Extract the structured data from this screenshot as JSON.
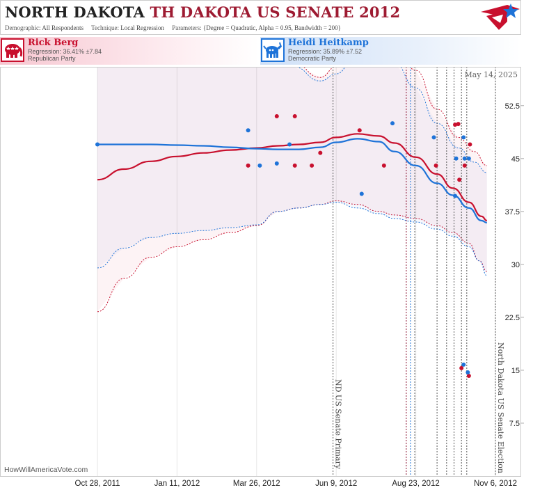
{
  "header": {
    "state": "NORTH DAKOTA",
    "race": "TH DAKOTA US SENATE 2012",
    "params": {
      "demographic_label": "Demographic:",
      "demographic": "All Respondents",
      "technique_label": "Technique:",
      "technique": "Local Regression",
      "parameters_label": "Parameters:",
      "parameters": "{Degree = Quadratic, Alpha = 0.95, Bandwidth = 200}"
    }
  },
  "candidates": {
    "rep": {
      "name": "Rick Berg",
      "regression": "Regression: 36.41% ±7.84",
      "party": "Republican Party",
      "color": "#c8102e"
    },
    "dem": {
      "name": "Heidi Heitkamp",
      "regression": "Regression: 35.89% ±7.52",
      "party": "Democratic Party",
      "color": "#1e73d8"
    }
  },
  "date_stamp": "May 14, 2025",
  "credit": "HowWillAmericaVote.com",
  "chart_data": {
    "type": "line",
    "x_axis": {
      "ticks": [
        "Oct 28, 2011",
        "Jan 11, 2012",
        "Mar 26, 2012",
        "Jun 9, 2012",
        "Aug 23, 2012",
        "Nov 6, 2012"
      ],
      "tick_days": [
        0,
        75,
        150,
        225,
        300,
        375
      ]
    },
    "y_axis": {
      "ticks": [
        "7.5",
        "15",
        "22.5",
        "30",
        "37.5",
        "45",
        "52.5"
      ],
      "ylim": [
        0,
        58
      ]
    },
    "grid": "vertical",
    "annotations": [
      {
        "day": 222,
        "text": "ND US Senate Primary"
      },
      {
        "day": 375,
        "text": "North Dakota US Senate Election"
      }
    ],
    "series": [
      {
        "party": "rep",
        "color": "#c8102e",
        "fit": [
          [
            0,
            42
          ],
          [
            25,
            43.5
          ],
          [
            50,
            44.6
          ],
          [
            75,
            45.3
          ],
          [
            100,
            45.8
          ],
          [
            125,
            46.2
          ],
          [
            150,
            46.5
          ],
          [
            170,
            46.8
          ],
          [
            190,
            47
          ],
          [
            210,
            47.3
          ],
          [
            225,
            48
          ],
          [
            245,
            48.5
          ],
          [
            265,
            48.2
          ],
          [
            280,
            47.2
          ],
          [
            300,
            45.2
          ],
          [
            320,
            42.8
          ],
          [
            335,
            40.8
          ],
          [
            350,
            38.8
          ],
          [
            362,
            36.8
          ],
          [
            367,
            36.2
          ]
        ],
        "band_upper": [
          [
            0,
            63
          ],
          [
            40,
            61
          ],
          [
            80,
            60.5
          ],
          [
            120,
            60.5
          ],
          [
            150,
            60.5
          ],
          [
            185,
            58.5
          ],
          [
            210,
            56.5
          ],
          [
            225,
            58
          ],
          [
            245,
            61
          ],
          [
            265,
            63
          ],
          [
            280,
            61.5
          ],
          [
            300,
            57.5
          ],
          [
            320,
            52
          ],
          [
            340,
            48
          ],
          [
            355,
            46
          ],
          [
            367,
            44
          ]
        ],
        "band_lower": [
          [
            0,
            23.3
          ],
          [
            25,
            28
          ],
          [
            50,
            31
          ],
          [
            75,
            32.5
          ],
          [
            100,
            33.5
          ],
          [
            125,
            34.5
          ],
          [
            150,
            35.5
          ],
          [
            170,
            37.5
          ],
          [
            190,
            38
          ],
          [
            210,
            38.5
          ],
          [
            225,
            39
          ],
          [
            245,
            38.5
          ],
          [
            265,
            37.5
          ],
          [
            280,
            37
          ],
          [
            300,
            36.5
          ],
          [
            320,
            35.5
          ],
          [
            335,
            34.5
          ],
          [
            350,
            33
          ],
          [
            360,
            30.5
          ],
          [
            367,
            29
          ]
        ],
        "polls": [
          [
            142,
            44
          ],
          [
            169,
            51
          ],
          [
            186,
            51
          ],
          [
            186,
            44
          ],
          [
            202,
            44
          ],
          [
            210,
            45.8
          ],
          [
            247,
            49
          ],
          [
            270,
            44
          ],
          [
            319,
            44
          ],
          [
            337,
            49.8
          ],
          [
            340,
            49.9
          ],
          [
            341,
            42
          ],
          [
            346,
            44
          ],
          [
            351,
            47
          ],
          [
            343,
            15.3
          ],
          [
            350,
            14.2
          ]
        ]
      },
      {
        "party": "dem",
        "color": "#1e73d8",
        "fit": [
          [
            0,
            47
          ],
          [
            25,
            47
          ],
          [
            50,
            47
          ],
          [
            75,
            46.9
          ],
          [
            100,
            46.8
          ],
          [
            125,
            46.6
          ],
          [
            150,
            46.4
          ],
          [
            170,
            46.3
          ],
          [
            190,
            46.3
          ],
          [
            210,
            46.6
          ],
          [
            225,
            47.3
          ],
          [
            245,
            47.8
          ],
          [
            265,
            47.4
          ],
          [
            280,
            46
          ],
          [
            300,
            44
          ],
          [
            320,
            41.5
          ],
          [
            335,
            39.8
          ],
          [
            350,
            38
          ],
          [
            362,
            36.2
          ],
          [
            367,
            35.9
          ]
        ],
        "band_upper": [
          [
            0,
            63
          ],
          [
            40,
            61
          ],
          [
            80,
            60.5
          ],
          [
            120,
            60.5
          ],
          [
            150,
            60
          ],
          [
            185,
            58
          ],
          [
            210,
            56
          ],
          [
            225,
            57
          ],
          [
            245,
            60
          ],
          [
            265,
            61
          ],
          [
            280,
            58.5
          ],
          [
            300,
            55
          ],
          [
            320,
            50
          ],
          [
            340,
            46.5
          ],
          [
            355,
            44.5
          ],
          [
            367,
            43
          ]
        ],
        "band_lower": [
          [
            0,
            29.5
          ],
          [
            25,
            32.3
          ],
          [
            50,
            33.8
          ],
          [
            75,
            34.4
          ],
          [
            100,
            34.8
          ],
          [
            125,
            35.2
          ],
          [
            150,
            35.6
          ],
          [
            170,
            37.5
          ],
          [
            190,
            38
          ],
          [
            210,
            38.5
          ],
          [
            225,
            38.8
          ],
          [
            245,
            38
          ],
          [
            265,
            37.2
          ],
          [
            280,
            36.5
          ],
          [
            300,
            36
          ],
          [
            320,
            35
          ],
          [
            335,
            34
          ],
          [
            350,
            32.5
          ],
          [
            360,
            30.5
          ],
          [
            367,
            28.4
          ]
        ],
        "polls": [
          [
            0,
            47
          ],
          [
            142,
            49
          ],
          [
            153,
            44
          ],
          [
            169,
            44.3
          ],
          [
            181,
            47
          ],
          [
            249,
            40
          ],
          [
            278,
            50
          ],
          [
            317,
            48
          ],
          [
            337,
            39.7
          ],
          [
            338,
            45
          ],
          [
            345,
            48
          ],
          [
            346,
            45
          ],
          [
            350,
            45
          ],
          [
            345,
            15.8
          ],
          [
            349,
            14.7
          ]
        ]
      }
    ],
    "vertical_markers": [
      {
        "day": 222,
        "color": "#555555"
      },
      {
        "day": 291,
        "color": "#8a1030"
      },
      {
        "day": 295,
        "color": "#1e73d8"
      },
      {
        "day": 299,
        "color": "#555555"
      },
      {
        "day": 320,
        "color": "#555555"
      },
      {
        "day": 329,
        "color": "#555555"
      },
      {
        "day": 336,
        "color": "#555555"
      },
      {
        "day": 343,
        "color": "#555555"
      },
      {
        "day": 348,
        "color": "#555555"
      },
      {
        "day": 375,
        "color": "#555555"
      }
    ]
  }
}
